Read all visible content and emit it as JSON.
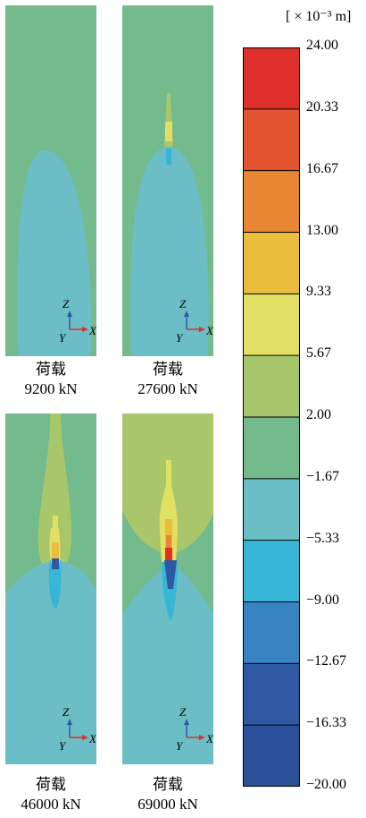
{
  "axes_labels": {
    "z": "Z",
    "y": "Y",
    "x": "X"
  },
  "panels": [
    {
      "caption_label": "荷载",
      "caption_value": "9200 kN"
    },
    {
      "caption_label": "荷载",
      "caption_value": "27600 kN"
    },
    {
      "caption_label": "荷载",
      "caption_value": "46000 kN"
    },
    {
      "caption_label": "荷载",
      "caption_value": "69000 kN"
    }
  ],
  "colorbar": {
    "unit_label": "[ × 10⁻³ m]",
    "ticks": [
      "24.00",
      "20.33",
      "16.67",
      "13.00",
      "9.33",
      "5.67",
      "2.00",
      "−1.67",
      "−5.33",
      "−9.00",
      "−12.67",
      "−16.33",
      "−20.00"
    ],
    "colors": [
      "#de2f2b",
      "#e4532f",
      "#e98634",
      "#ebbd3c",
      "#e2e063",
      "#a7c76a",
      "#73ba8c",
      "#6bbec5",
      "#38b6d8",
      "#3782c0",
      "#2e59a2",
      "#2b4f98"
    ]
  }
}
